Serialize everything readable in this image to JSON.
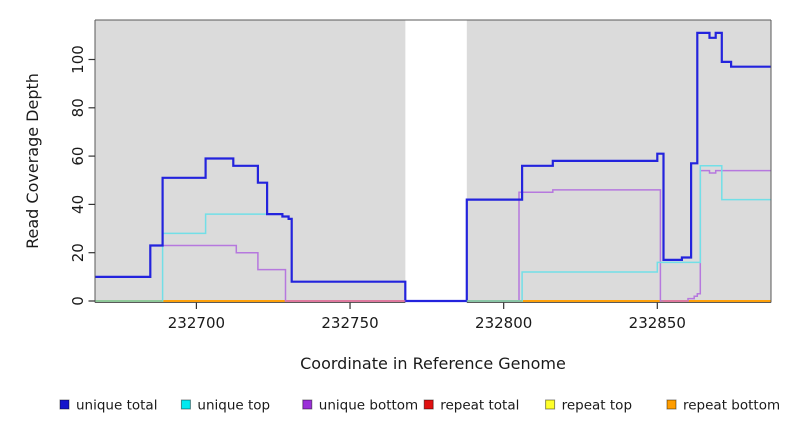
{
  "chart_data": {
    "type": "line",
    "step": true,
    "title": "",
    "xlabel": "Coordinate in Reference Genome",
    "ylabel": "Read Coverage Depth",
    "xlim": [
      232667,
      232887
    ],
    "ylim": [
      0,
      116
    ],
    "x_ticks": [
      "232700",
      "232750",
      "232800",
      "232850"
    ],
    "x_tick_values": [
      232700,
      232750,
      232800,
      232850
    ],
    "y_ticks": [
      "0",
      "20",
      "40",
      "60",
      "80",
      "100"
    ],
    "y_tick_values": [
      0,
      20,
      40,
      60,
      80,
      100
    ],
    "grid": false,
    "legend_position": "bottom",
    "panel_bg": "#dbdbdb",
    "box_color": "#5a5a5a",
    "tick_color": "#333333",
    "no_data_region": [
      232768,
      232788
    ],
    "series": [
      {
        "name": "unique total",
        "color": "#2323dd",
        "legend_color": "#1414cc",
        "width": 2.2,
        "points": [
          [
            232667,
            10
          ],
          [
            232685,
            23
          ],
          [
            232689,
            51
          ],
          [
            232703,
            59
          ],
          [
            232712,
            56
          ],
          [
            232720,
            49
          ],
          [
            232723,
            36
          ],
          [
            232728,
            35
          ],
          [
            232730,
            34
          ],
          [
            232731,
            8
          ],
          [
            232768,
            0
          ],
          [
            232788,
            42
          ],
          [
            232806,
            56
          ],
          [
            232816,
            58
          ],
          [
            232850,
            61
          ],
          [
            232852,
            17
          ],
          [
            232858,
            18
          ],
          [
            232861,
            57
          ],
          [
            232863,
            111
          ],
          [
            232867,
            109
          ],
          [
            232869,
            111
          ],
          [
            232871,
            99
          ],
          [
            232874,
            97
          ]
        ]
      },
      {
        "name": "unique top",
        "color": "#72dfe7",
        "legend_color": "#00e9ef",
        "width": 1.5,
        "points": [
          [
            232667,
            0
          ],
          [
            232689,
            28
          ],
          [
            232703,
            36
          ],
          [
            232728,
            35
          ],
          [
            232730,
            34
          ],
          [
            232731,
            8
          ],
          [
            232768,
            0
          ],
          [
            232806,
            12
          ],
          [
            232850,
            16
          ],
          [
            232864,
            56
          ],
          [
            232871,
            42
          ]
        ]
      },
      {
        "name": "unique bottom",
        "color": "#b678de",
        "legend_color": "#9a30d8",
        "width": 1.5,
        "points": [
          [
            232667,
            10
          ],
          [
            232685,
            23
          ],
          [
            232713,
            20
          ],
          [
            232720,
            13
          ],
          [
            232729,
            0
          ],
          [
            232805,
            45
          ],
          [
            232816,
            46
          ],
          [
            232851,
            0
          ],
          [
            232860,
            1
          ],
          [
            232862,
            2
          ],
          [
            232863,
            3
          ],
          [
            232864,
            54
          ],
          [
            232867,
            53
          ],
          [
            232869,
            54
          ]
        ]
      },
      {
        "name": "repeat total",
        "color": "#e01010",
        "legend_color": "#e01010",
        "width": 1.5,
        "points": [
          [
            232667,
            0
          ]
        ]
      },
      {
        "name": "repeat top",
        "color": "#ffff2a",
        "legend_color": "#ffff2a",
        "width": 1.5,
        "points": [
          [
            232667,
            0
          ]
        ]
      },
      {
        "name": "repeat bottom",
        "color": "#ff9d00",
        "legend_color": "#ff9d00",
        "width": 1.8,
        "points": [
          [
            232667,
            0
          ]
        ]
      }
    ],
    "baseline_blend_segments": [
      {
        "from": 232667,
        "to": 232689,
        "color": "#82caa2"
      },
      {
        "from": 232788,
        "to": 232806,
        "color": "#82caa2"
      },
      {
        "from": 232729,
        "to": 232768,
        "color": "#df72aa"
      },
      {
        "from": 232852,
        "to": 232860,
        "color": "#df72aa"
      }
    ]
  }
}
